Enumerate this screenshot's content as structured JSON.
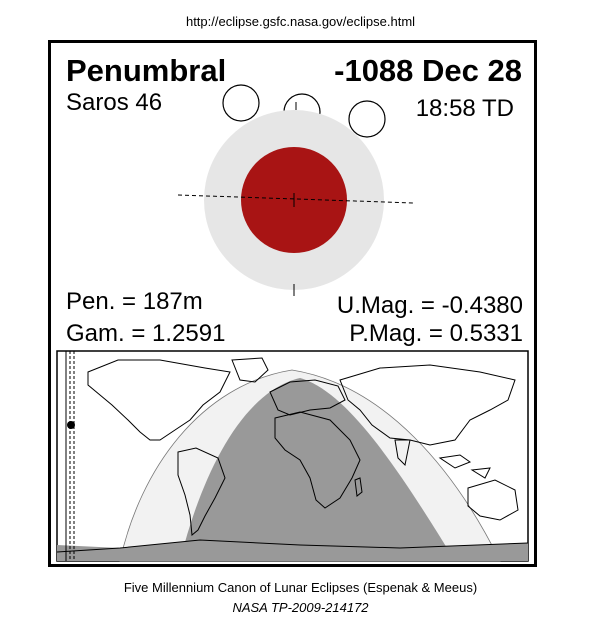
{
  "source_url": "http://eclipse.gsfc.nasa.gov/eclipse.html",
  "eclipse": {
    "type": "Penumbral",
    "date": "-1088 Dec 28",
    "saros": "Saros  46",
    "time": "18:58 TD",
    "pen_duration": "Pen. = 187m",
    "gamma": "Gam. = 1.2591",
    "umbral_magnitude": "U.Mag. = -0.4380",
    "penumbral_magnitude": "P.Mag. = 0.5331"
  },
  "colors": {
    "umbra": "#a81414",
    "penumbra": "#e6e6e6",
    "night_side": "#999999",
    "penumbral_zone": "#f2f2f2"
  },
  "footer": {
    "line1": "Five Millennium Canon of Lunar Eclipses (Espenak & Meeus)",
    "line2": "NASA TP-2009-214172"
  }
}
